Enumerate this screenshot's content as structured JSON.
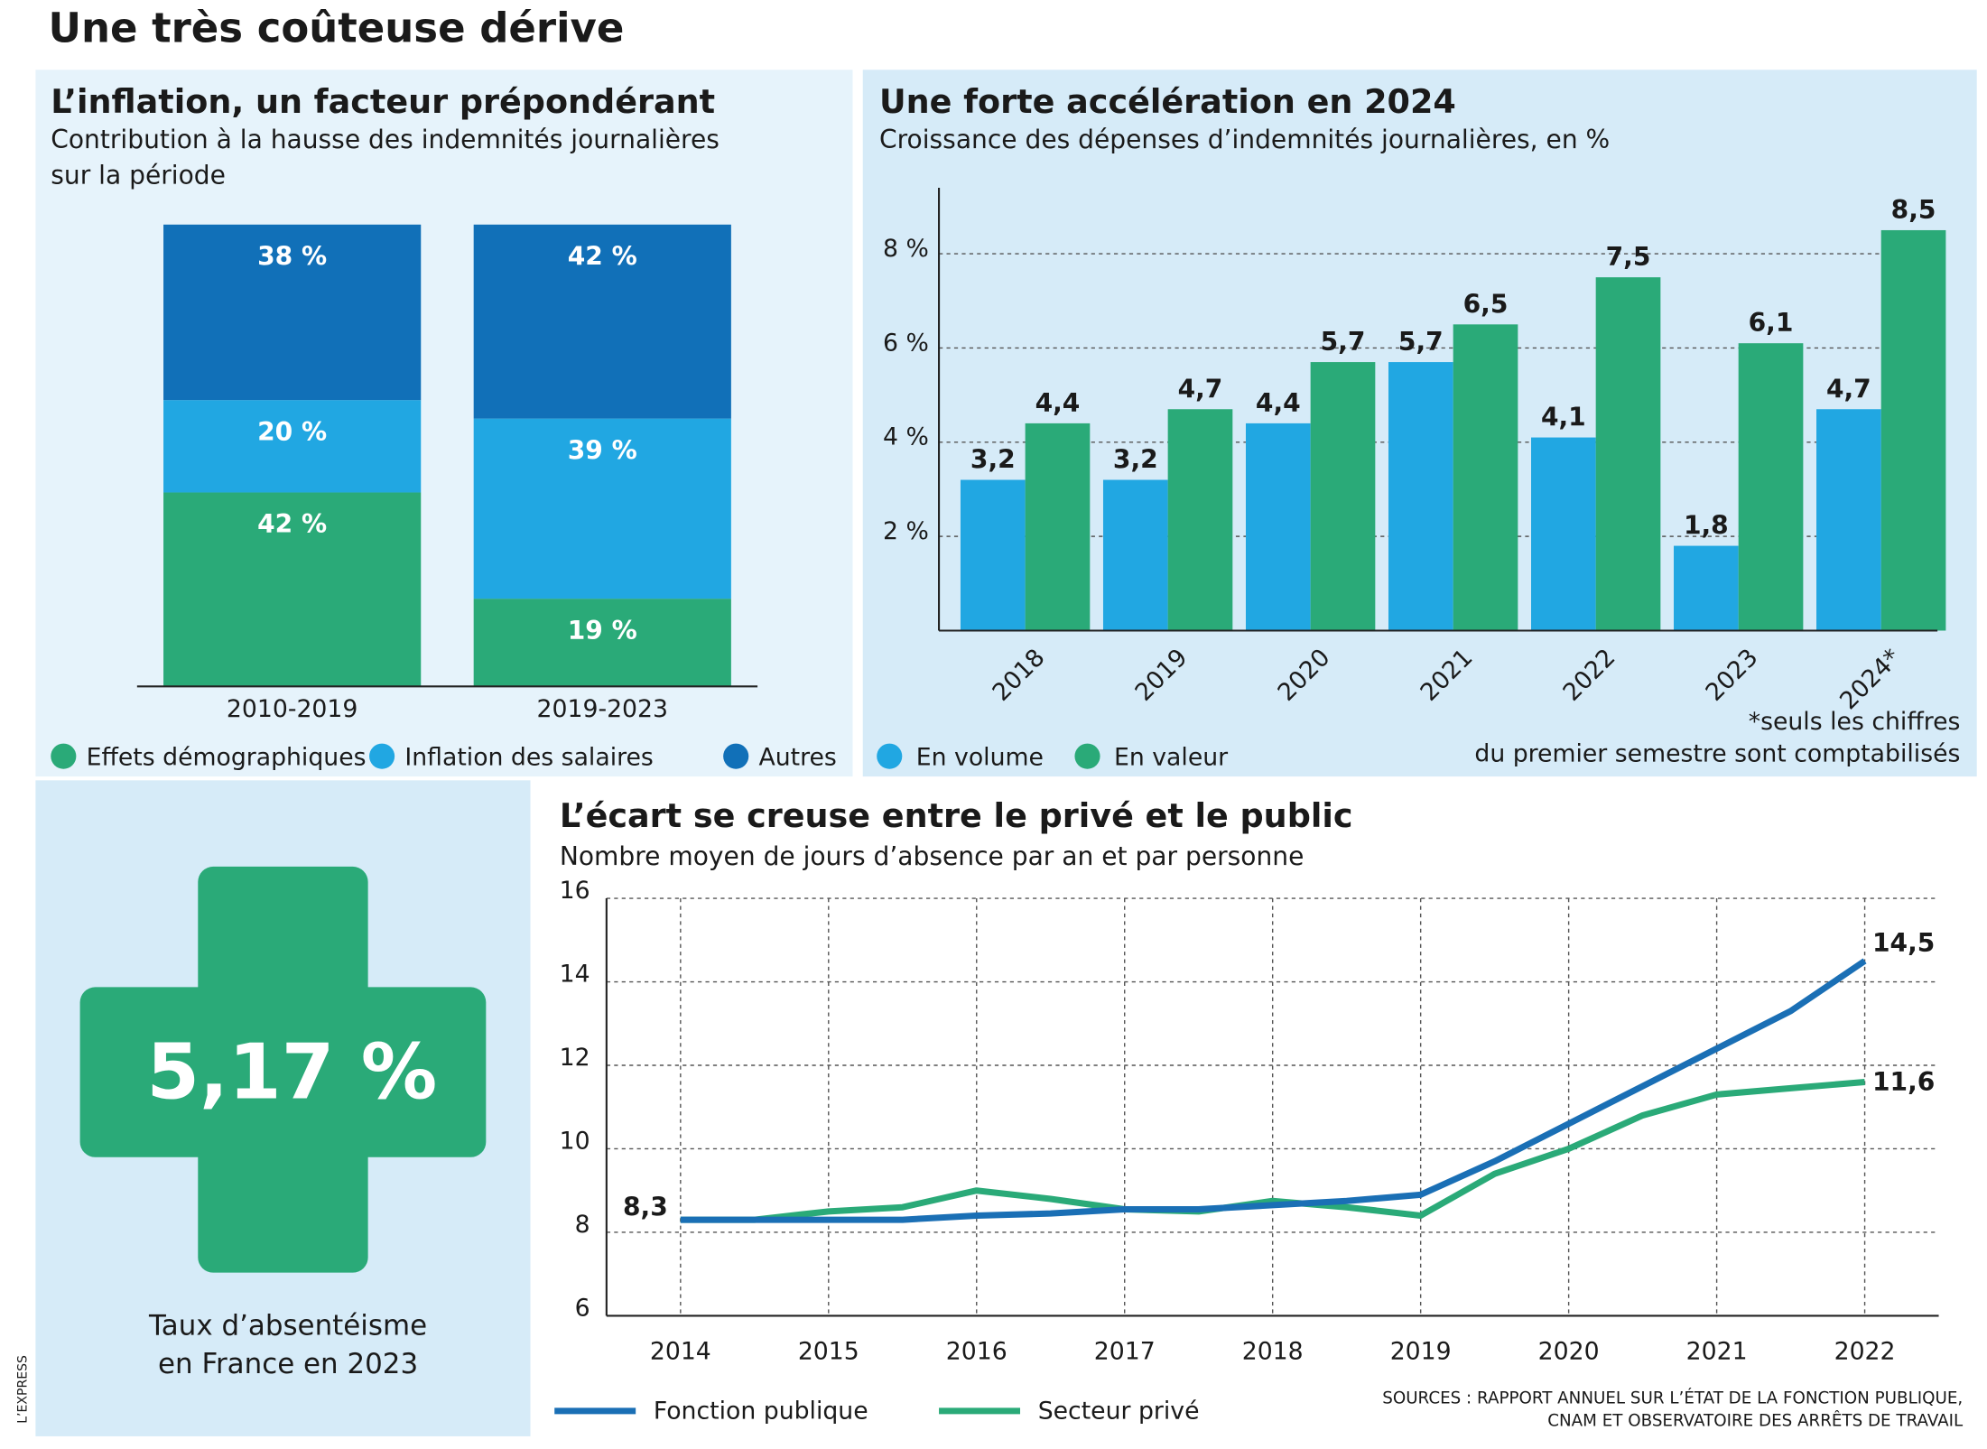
{
  "title": "Une très coûteuse dérive",
  "card": {
    "value": "5,17 %",
    "caption": [
      "Taux d’absentéisme",
      "en France en 2023"
    ]
  },
  "sources": [
    "SOURCES : RAPPORT ANNUEL SUR L’ÉTAT DE LA FONCTION PUBLIQUE,",
    "CNAM ET OBSERVATOIRE DES ARRÊTS DE TRAVAIL"
  ],
  "credit": "L’EXPRESS",
  "chart_data": [
    {
      "type": "stacked_bar",
      "title": "L’inflation, un facteur prépondérant",
      "subtitle": [
        "Contribution à la hausse des indemnités journalières",
        "sur la période"
      ],
      "categories": [
        "2010-2019",
        "2019-2023"
      ],
      "series": [
        {
          "name": "Effets démographiques",
          "color": "#2aaa78",
          "values": [
            42,
            19
          ],
          "value_labels": [
            "42 %",
            "19 %"
          ]
        },
        {
          "name": "Inflation des salaires",
          "color": "#21a7e2",
          "values": [
            20,
            39
          ],
          "value_labels": [
            "20 %",
            "39 %"
          ]
        },
        {
          "name": "Autres",
          "color": "#1170b8",
          "values": [
            38,
            42
          ],
          "value_labels": [
            "38 %",
            "42 %"
          ]
        }
      ],
      "ylim": [
        0,
        100
      ]
    },
    {
      "type": "bar",
      "title": "Une forte accélération en 2024",
      "subtitle": [
        "Croissance des dépenses d’indemnités journalières, en %"
      ],
      "categories": [
        "2018",
        "2019",
        "2020",
        "2021",
        "2022",
        "2023",
        "2024*"
      ],
      "series": [
        {
          "name": "En volume",
          "color": "#21a7e2",
          "values": [
            3.2,
            3.2,
            4.4,
            5.7,
            4.1,
            1.8,
            4.7
          ],
          "value_labels": [
            "3,2",
            "3,2",
            "4,4",
            "5,7",
            "4,1",
            "1,8",
            "4,7"
          ]
        },
        {
          "name": "En valeur",
          "color": "#2aaa78",
          "values": [
            4.4,
            4.7,
            5.7,
            6.5,
            7.5,
            6.1,
            8.5
          ],
          "value_labels": [
            "4,4",
            "4,7",
            "5,7",
            "6,5",
            "7,5",
            "6,1",
            "8,5"
          ]
        }
      ],
      "ylim": [
        0,
        9.4
      ],
      "yticks": [
        {
          "value": 2,
          "label": "2 %"
        },
        {
          "value": 4,
          "label": "4 %"
        },
        {
          "value": 6,
          "label": "6 %"
        },
        {
          "value": 8,
          "label": "8 %"
        }
      ],
      "grid": true,
      "note": [
        "*seuls les chiffres",
        "du premier semestre sont comptabilisés"
      ]
    },
    {
      "type": "line",
      "title": "L’écart se creuse entre le privé et le public",
      "subtitle": [
        "Nombre moyen de jours d’absence par an et par personne"
      ],
      "x": [
        2014,
        2014.5,
        2015,
        2015.5,
        2016,
        2016.5,
        2017,
        2017.5,
        2018,
        2018.5,
        2019,
        2019.5,
        2020,
        2020.5,
        2021,
        2021.5,
        2022
      ],
      "series": [
        {
          "name": "Fonction publique",
          "color": "#1a6fb5",
          "values": [
            8.3,
            8.3,
            8.3,
            8.3,
            8.4,
            8.45,
            8.55,
            8.55,
            8.65,
            8.75,
            8.9,
            9.7,
            10.6,
            11.5,
            12.4,
            13.3,
            14.5
          ],
          "value_labels": [
            "8,3",
            null,
            null,
            null,
            null,
            null,
            null,
            null,
            null,
            null,
            null,
            null,
            null,
            null,
            null,
            null,
            "14,5"
          ]
        },
        {
          "name": "Secteur privé",
          "color": "#2aaa78",
          "values": [
            8.3,
            8.3,
            8.5,
            8.6,
            9.0,
            8.8,
            8.55,
            8.5,
            8.75,
            8.6,
            8.4,
            9.4,
            10.0,
            10.8,
            11.3,
            11.45,
            11.6
          ],
          "value_labels": [
            null,
            null,
            null,
            null,
            null,
            null,
            null,
            null,
            null,
            null,
            null,
            null,
            null,
            null,
            null,
            null,
            "11,6"
          ]
        }
      ],
      "xlim": [
        2013.5,
        2022.5
      ],
      "ylim": [
        6,
        16
      ],
      "xticks": [
        2014,
        2015,
        2016,
        2017,
        2018,
        2019,
        2020,
        2021,
        2022
      ],
      "yticks": [
        6,
        8,
        10,
        12,
        14,
        16
      ],
      "grid": true
    }
  ]
}
